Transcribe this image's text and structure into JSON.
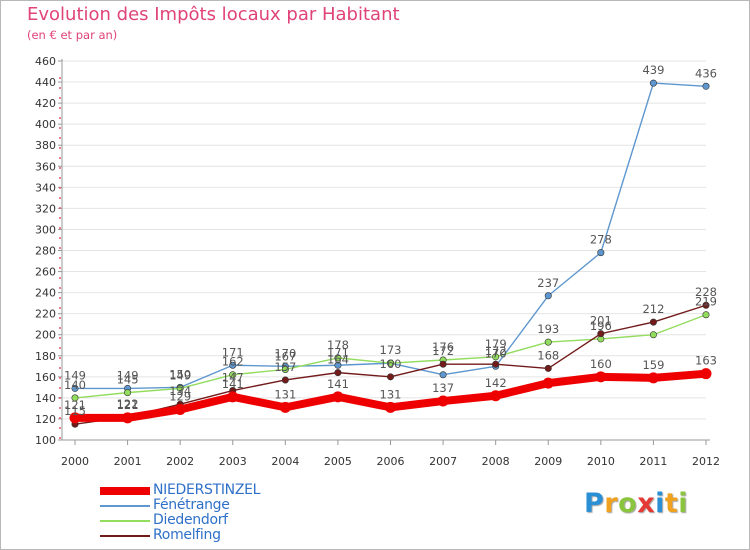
{
  "chart_data": {
    "type": "line",
    "title": "Evolution des Impôts locaux par Habitant",
    "subtitle": "(en € et par an)",
    "xlabel": "",
    "ylabel": "",
    "categories": [
      "2000",
      "2001",
      "2002",
      "2003",
      "2004",
      "2005",
      "2006",
      "2007",
      "2008",
      "2009",
      "2010",
      "2011",
      "2012"
    ],
    "ylim": [
      100,
      460
    ],
    "yticks": [
      100,
      120,
      140,
      160,
      180,
      200,
      220,
      240,
      260,
      280,
      300,
      320,
      340,
      360,
      380,
      400,
      420,
      440,
      460
    ],
    "grid": true,
    "legend_position": "bottom-left",
    "series": [
      {
        "name": "NIEDERSTINZEL",
        "color": "#ee0000",
        "values": [
          121,
          121,
          129,
          141,
          131,
          141,
          131,
          137,
          142,
          154,
          160,
          159,
          163
        ],
        "labels": [
          "121",
          "121",
          "129",
          "141",
          "131",
          "141",
          "131",
          "137",
          "142",
          "",
          "160",
          "159",
          "163"
        ]
      },
      {
        "name": "Fénétrange",
        "color": "#5e97cf",
        "values": [
          149,
          149,
          150,
          171,
          170,
          171,
          173,
          162,
          170,
          237,
          278,
          439,
          436
        ],
        "labels": [
          "149",
          "149",
          "150",
          "171",
          "170",
          "171",
          "173",
          "",
          "170",
          "237",
          "278",
          "439",
          "436"
        ]
      },
      {
        "name": "Diedendorf",
        "color": "#92dc5e",
        "values": [
          140,
          145,
          149,
          162,
          167,
          178,
          173,
          176,
          179,
          193,
          196,
          200,
          219
        ],
        "labels": [
          "140",
          "145",
          "149",
          "162",
          "167",
          "178",
          "",
          "176",
          "179",
          "193",
          "196",
          "",
          "219"
        ]
      },
      {
        "name": "Romelfing",
        "color": "#731b1b",
        "values": [
          115,
          122,
          134,
          147,
          157,
          164,
          160,
          172,
          172,
          168,
          201,
          212,
          228
        ],
        "labels": [
          "115",
          "122",
          "134",
          "147",
          "157",
          "164",
          "160",
          "172",
          "172",
          "168",
          "201",
          "212",
          "228"
        ]
      }
    ]
  },
  "brand": {
    "name": "Proxiti",
    "letters": [
      {
        "ch": "P",
        "color": "#2a8fd5"
      },
      {
        "ch": "r",
        "color": "#f0a21f"
      },
      {
        "ch": "o",
        "color": "#8bc43e"
      },
      {
        "ch": "x",
        "color": "#e53935"
      },
      {
        "ch": "i",
        "color": "#2a8fd5"
      },
      {
        "ch": "t",
        "color": "#f0a21f"
      },
      {
        "ch": "i",
        "color": "#8bc43e"
      }
    ]
  }
}
